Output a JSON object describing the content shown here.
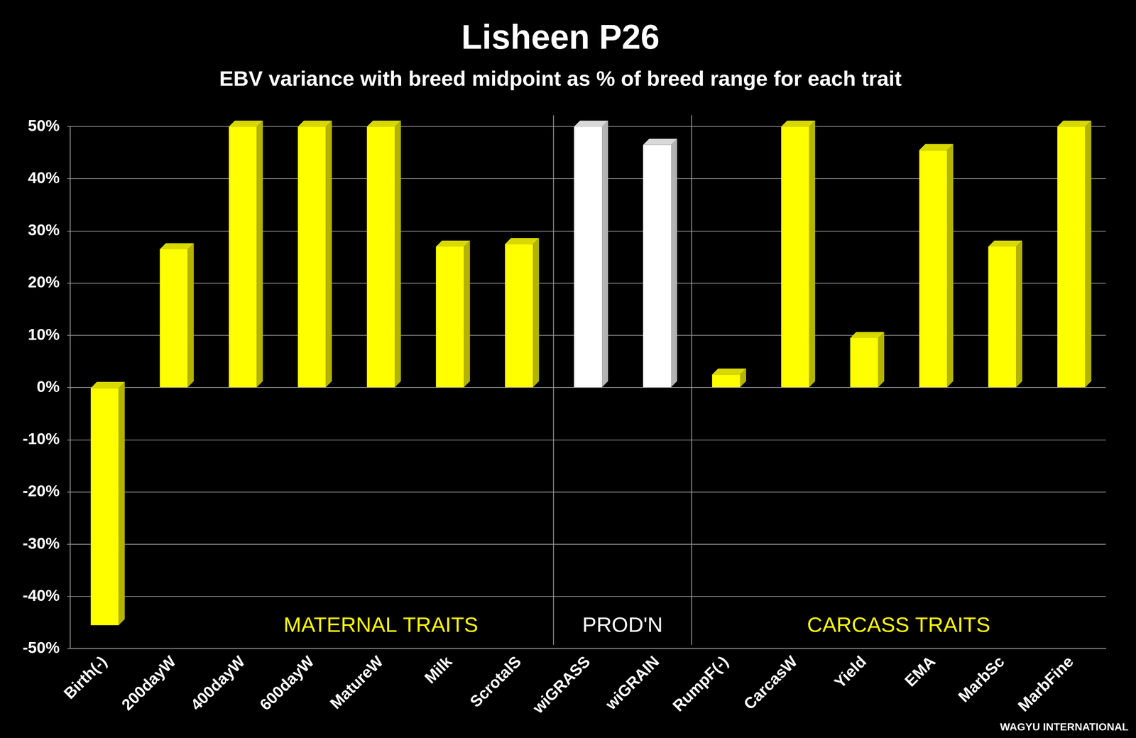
{
  "chart_data": {
    "type": "bar",
    "title": "Lisheen P26",
    "subtitle": "EBV variance with breed midpoint as % of breed range for each trait",
    "categories": [
      "Birth(-)",
      "200dayW",
      "400dayW",
      "600dayW",
      "MatureW",
      "Milk",
      "ScrotalS",
      "wiGRASS",
      "wiGRAIN",
      "RumpF(-)",
      "CarcasW",
      "Yield",
      "EMA",
      "MarbSc",
      "MarbFine"
    ],
    "values": [
      -45.5,
      26.5,
      50,
      50,
      50,
      27,
      27.5,
      50,
      46.5,
      2.5,
      50,
      9.5,
      45.5,
      27,
      50
    ],
    "colors": [
      "#ffff00",
      "#ffff00",
      "#ffff00",
      "#ffff00",
      "#ffff00",
      "#ffff00",
      "#ffff00",
      "#ffffff",
      "#ffffff",
      "#ffff00",
      "#ffff00",
      "#ffff00",
      "#ffff00",
      "#ffff00",
      "#ffff00"
    ],
    "ylim": [
      -50,
      50
    ],
    "yticks": [
      {
        "value": -50,
        "label": "-50%"
      },
      {
        "value": -40,
        "label": "-40%"
      },
      {
        "value": -30,
        "label": "-30%"
      },
      {
        "value": -20,
        "label": "-20%"
      },
      {
        "value": -10,
        "label": "-10%"
      },
      {
        "value": 0,
        "label": "0%"
      },
      {
        "value": 10,
        "label": "10%"
      },
      {
        "value": 20,
        "label": "20%"
      },
      {
        "value": 30,
        "label": "30%"
      },
      {
        "value": 40,
        "label": "40%"
      },
      {
        "value": 50,
        "label": "50%"
      }
    ],
    "grid": true,
    "annotations": [
      {
        "text": "MATERNAL TRAITS",
        "from": "Birth(-)",
        "to": "ScrotalS"
      },
      {
        "text": "PROD'N",
        "from": "wiGRASS",
        "to": "wiGRAIN"
      },
      {
        "text": "CARCASS TRAITS",
        "from": "RumpF(-)",
        "to": "MarbFine"
      },
      {
        "text": "WAGYU INTERNATIONAL"
      }
    ]
  }
}
